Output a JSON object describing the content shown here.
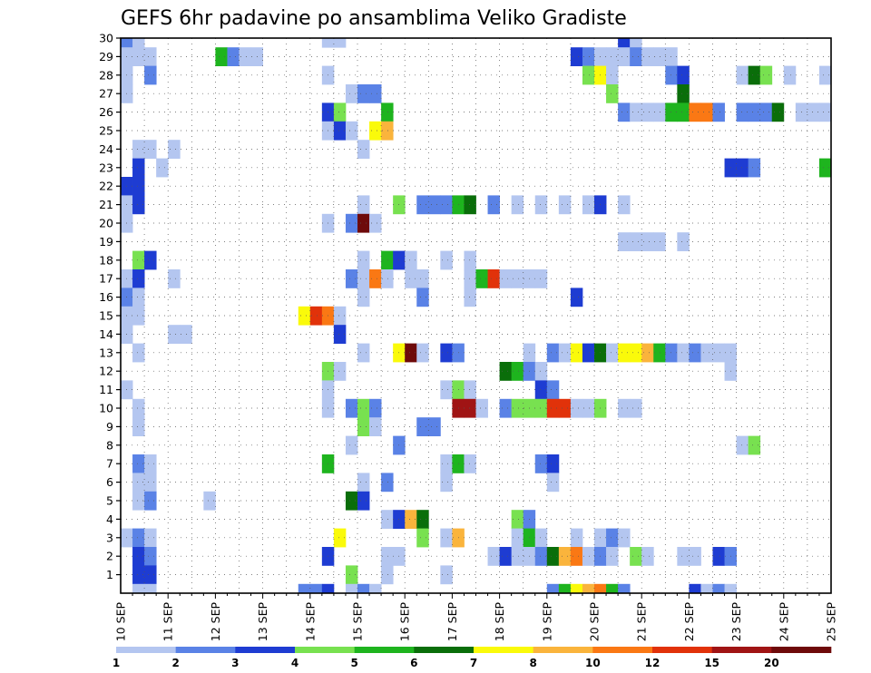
{
  "chart_data": {
    "type": "heatmap",
    "title": "GEFS 6hr padavine po ansamblima Veliko Gradiste",
    "xlabel": "",
    "ylabel": "",
    "x_tick_labels": [
      "10 SEP",
      "11 SEP",
      "12 SEP",
      "13 SEP",
      "14 SEP",
      "15 SEP",
      "16 SEP",
      "17 SEP",
      "18 SEP",
      "19 SEP",
      "20 SEP",
      "21 SEP",
      "22 SEP",
      "23 SEP",
      "24 SEP",
      "25 SEP"
    ],
    "y_tick_labels": [
      "1",
      "2",
      "3",
      "4",
      "5",
      "6",
      "7",
      "8",
      "9",
      "10",
      "11",
      "12",
      "13",
      "14",
      "15",
      "16",
      "17",
      "18",
      "19",
      "20",
      "21",
      "22",
      "23",
      "24",
      "25",
      "26",
      "27",
      "28",
      "29",
      "30"
    ],
    "x_unit": "6-hour step from 10 SEP 00z (4 steps per day)",
    "y_unit": "ensemble member (0 = control)",
    "xlim": [
      0,
      60
    ],
    "ylim": [
      0,
      30
    ],
    "grid": "dotted",
    "colorbar": {
      "placement": "bottom",
      "labels": [
        "1",
        "2",
        "3",
        "4",
        "5",
        "6",
        "7",
        "8",
        "10",
        "12",
        "15",
        "20"
      ],
      "bin_colors": [
        "#b4c6f0",
        "#5a82e6",
        "#1e3cd2",
        "#78e150",
        "#1eb41e",
        "#0a6e0a",
        "#fafa0a",
        "#fab43c",
        "#fa7814",
        "#e1320a",
        "#a01414",
        "#6e0a0a"
      ]
    },
    "cells_note": "each cell is [member, step, color_bin]; color_bin indexes colorbar.bin_colors",
    "cells": [
      [
        30,
        0,
        1
      ],
      [
        30,
        1,
        0
      ],
      [
        30,
        17,
        0
      ],
      [
        30,
        18,
        0
      ],
      [
        30,
        42,
        2
      ],
      [
        30,
        43,
        0
      ],
      [
        29,
        0,
        0
      ],
      [
        29,
        1,
        0
      ],
      [
        29,
        2,
        0
      ],
      [
        29,
        8,
        4
      ],
      [
        29,
        9,
        1
      ],
      [
        29,
        10,
        0
      ],
      [
        29,
        11,
        0
      ],
      [
        29,
        38,
        2
      ],
      [
        29,
        39,
        1
      ],
      [
        29,
        40,
        0
      ],
      [
        29,
        41,
        0
      ],
      [
        29,
        42,
        0
      ],
      [
        29,
        43,
        1
      ],
      [
        29,
        44,
        0
      ],
      [
        29,
        45,
        0
      ],
      [
        29,
        46,
        0
      ],
      [
        28,
        0,
        0
      ],
      [
        28,
        2,
        1
      ],
      [
        28,
        17,
        0
      ],
      [
        28,
        39,
        3
      ],
      [
        28,
        40,
        6
      ],
      [
        28,
        41,
        0
      ],
      [
        28,
        46,
        1
      ],
      [
        28,
        47,
        2
      ],
      [
        28,
        52,
        0
      ],
      [
        28,
        53,
        5
      ],
      [
        28,
        54,
        3
      ],
      [
        28,
        56,
        0
      ],
      [
        28,
        59,
        0
      ],
      [
        27,
        0,
        0
      ],
      [
        27,
        19,
        0
      ],
      [
        27,
        20,
        1
      ],
      [
        27,
        21,
        1
      ],
      [
        27,
        41,
        3
      ],
      [
        27,
        47,
        5
      ],
      [
        26,
        17,
        2
      ],
      [
        26,
        18,
        3
      ],
      [
        26,
        22,
        4
      ],
      [
        26,
        42,
        1
      ],
      [
        26,
        43,
        0
      ],
      [
        26,
        44,
        0
      ],
      [
        26,
        45,
        0
      ],
      [
        26,
        46,
        4
      ],
      [
        26,
        47,
        4
      ],
      [
        26,
        48,
        8
      ],
      [
        26,
        49,
        8
      ],
      [
        26,
        50,
        1
      ],
      [
        26,
        52,
        1
      ],
      [
        26,
        53,
        1
      ],
      [
        26,
        54,
        1
      ],
      [
        26,
        55,
        5
      ],
      [
        26,
        57,
        0
      ],
      [
        26,
        58,
        0
      ],
      [
        26,
        59,
        0
      ],
      [
        25,
        17,
        0
      ],
      [
        25,
        18,
        2
      ],
      [
        25,
        19,
        0
      ],
      [
        25,
        21,
        6
      ],
      [
        25,
        22,
        7
      ],
      [
        24,
        1,
        0
      ],
      [
        24,
        2,
        0
      ],
      [
        24,
        4,
        0
      ],
      [
        24,
        20,
        0
      ],
      [
        23,
        1,
        2
      ],
      [
        23,
        3,
        0
      ],
      [
        23,
        51,
        2
      ],
      [
        23,
        52,
        2
      ],
      [
        23,
        53,
        1
      ],
      [
        23,
        59,
        4
      ],
      [
        23,
        60,
        0
      ],
      [
        22,
        0,
        2
      ],
      [
        22,
        1,
        2
      ],
      [
        21,
        0,
        0
      ],
      [
        21,
        1,
        2
      ],
      [
        21,
        20,
        0
      ],
      [
        21,
        23,
        3
      ],
      [
        21,
        25,
        1
      ],
      [
        21,
        26,
        1
      ],
      [
        21,
        27,
        1
      ],
      [
        21,
        28,
        4
      ],
      [
        21,
        29,
        5
      ],
      [
        21,
        31,
        1
      ],
      [
        21,
        33,
        0
      ],
      [
        21,
        35,
        0
      ],
      [
        21,
        37,
        0
      ],
      [
        21,
        39,
        0
      ],
      [
        21,
        40,
        2
      ],
      [
        21,
        42,
        0
      ],
      [
        20,
        0,
        0
      ],
      [
        20,
        17,
        0
      ],
      [
        20,
        19,
        1
      ],
      [
        20,
        20,
        11
      ],
      [
        20,
        21,
        0
      ],
      [
        19,
        42,
        0
      ],
      [
        19,
        43,
        0
      ],
      [
        19,
        44,
        0
      ],
      [
        19,
        45,
        0
      ],
      [
        19,
        47,
        0
      ],
      [
        18,
        1,
        3
      ],
      [
        18,
        2,
        2
      ],
      [
        18,
        20,
        0
      ],
      [
        18,
        22,
        4
      ],
      [
        18,
        23,
        2
      ],
      [
        18,
        24,
        0
      ],
      [
        18,
        27,
        0
      ],
      [
        18,
        29,
        0
      ],
      [
        17,
        0,
        0
      ],
      [
        17,
        1,
        2
      ],
      [
        17,
        4,
        0
      ],
      [
        17,
        19,
        1
      ],
      [
        17,
        20,
        0
      ],
      [
        17,
        21,
        8
      ],
      [
        17,
        22,
        0
      ],
      [
        17,
        24,
        0
      ],
      [
        17,
        25,
        0
      ],
      [
        17,
        29,
        0
      ],
      [
        17,
        30,
        4
      ],
      [
        17,
        31,
        9
      ],
      [
        17,
        32,
        0
      ],
      [
        17,
        33,
        0
      ],
      [
        17,
        34,
        0
      ],
      [
        17,
        35,
        0
      ],
      [
        16,
        0,
        1
      ],
      [
        16,
        1,
        0
      ],
      [
        16,
        20,
        0
      ],
      [
        16,
        25,
        1
      ],
      [
        16,
        29,
        0
      ],
      [
        16,
        38,
        2
      ],
      [
        15,
        0,
        0
      ],
      [
        15,
        1,
        0
      ],
      [
        15,
        15,
        6
      ],
      [
        15,
        16,
        9
      ],
      [
        15,
        17,
        8
      ],
      [
        15,
        18,
        0
      ],
      [
        14,
        0,
        0
      ],
      [
        14,
        4,
        0
      ],
      [
        14,
        5,
        0
      ],
      [
        14,
        18,
        2
      ],
      [
        13,
        1,
        0
      ],
      [
        13,
        20,
        0
      ],
      [
        13,
        23,
        6
      ],
      [
        13,
        24,
        11
      ],
      [
        13,
        25,
        0
      ],
      [
        13,
        27,
        2
      ],
      [
        13,
        28,
        1
      ],
      [
        13,
        34,
        0
      ],
      [
        13,
        36,
        1
      ],
      [
        13,
        37,
        0
      ],
      [
        13,
        38,
        6
      ],
      [
        13,
        39,
        2
      ],
      [
        13,
        40,
        5
      ],
      [
        13,
        41,
        0
      ],
      [
        13,
        42,
        6
      ],
      [
        13,
        43,
        6
      ],
      [
        13,
        44,
        7
      ],
      [
        13,
        45,
        4
      ],
      [
        13,
        46,
        1
      ],
      [
        13,
        47,
        0
      ],
      [
        13,
        48,
        1
      ],
      [
        13,
        49,
        0
      ],
      [
        13,
        50,
        0
      ],
      [
        13,
        51,
        0
      ],
      [
        12,
        17,
        3
      ],
      [
        12,
        18,
        0
      ],
      [
        12,
        32,
        5
      ],
      [
        12,
        33,
        4
      ],
      [
        12,
        34,
        1
      ],
      [
        12,
        35,
        0
      ],
      [
        12,
        51,
        0
      ],
      [
        11,
        0,
        0
      ],
      [
        11,
        17,
        0
      ],
      [
        11,
        27,
        0
      ],
      [
        11,
        28,
        3
      ],
      [
        11,
        29,
        0
      ],
      [
        11,
        35,
        2
      ],
      [
        11,
        36,
        1
      ],
      [
        10,
        1,
        0
      ],
      [
        10,
        17,
        0
      ],
      [
        10,
        19,
        1
      ],
      [
        10,
        20,
        3
      ],
      [
        10,
        21,
        1
      ],
      [
        10,
        28,
        10
      ],
      [
        10,
        29,
        10
      ],
      [
        10,
        30,
        0
      ],
      [
        10,
        32,
        1
      ],
      [
        10,
        33,
        3
      ],
      [
        10,
        34,
        3
      ],
      [
        10,
        35,
        3
      ],
      [
        10,
        36,
        9
      ],
      [
        10,
        37,
        9
      ],
      [
        10,
        38,
        0
      ],
      [
        10,
        39,
        0
      ],
      [
        10,
        40,
        3
      ],
      [
        10,
        42,
        0
      ],
      [
        10,
        43,
        0
      ],
      [
        9,
        1,
        0
      ],
      [
        9,
        20,
        3
      ],
      [
        9,
        21,
        0
      ],
      [
        9,
        25,
        1
      ],
      [
        9,
        26,
        1
      ],
      [
        8,
        19,
        0
      ],
      [
        8,
        23,
        1
      ],
      [
        8,
        52,
        0
      ],
      [
        8,
        53,
        3
      ],
      [
        7,
        1,
        1
      ],
      [
        7,
        2,
        0
      ],
      [
        7,
        17,
        4
      ],
      [
        7,
        27,
        0
      ],
      [
        7,
        28,
        4
      ],
      [
        7,
        29,
        0
      ],
      [
        7,
        35,
        1
      ],
      [
        7,
        36,
        2
      ],
      [
        6,
        1,
        0
      ],
      [
        6,
        2,
        0
      ],
      [
        6,
        20,
        0
      ],
      [
        6,
        22,
        1
      ],
      [
        6,
        27,
        0
      ],
      [
        6,
        36,
        0
      ],
      [
        5,
        1,
        0
      ],
      [
        5,
        2,
        1
      ],
      [
        5,
        7,
        0
      ],
      [
        5,
        19,
        5
      ],
      [
        5,
        20,
        2
      ],
      [
        4,
        22,
        0
      ],
      [
        4,
        23,
        2
      ],
      [
        4,
        24,
        7
      ],
      [
        4,
        25,
        5
      ],
      [
        4,
        33,
        3
      ],
      [
        4,
        34,
        1
      ],
      [
        3,
        0,
        0
      ],
      [
        3,
        1,
        1
      ],
      [
        3,
        2,
        0
      ],
      [
        3,
        18,
        6
      ],
      [
        3,
        25,
        3
      ],
      [
        3,
        27,
        0
      ],
      [
        3,
        28,
        7
      ],
      [
        3,
        33,
        0
      ],
      [
        3,
        34,
        4
      ],
      [
        3,
        35,
        0
      ],
      [
        3,
        38,
        0
      ],
      [
        3,
        40,
        0
      ],
      [
        3,
        41,
        1
      ],
      [
        3,
        42,
        0
      ],
      [
        2,
        1,
        2
      ],
      [
        2,
        2,
        1
      ],
      [
        2,
        17,
        2
      ],
      [
        2,
        22,
        0
      ],
      [
        2,
        23,
        0
      ],
      [
        2,
        31,
        0
      ],
      [
        2,
        32,
        2
      ],
      [
        2,
        33,
        0
      ],
      [
        2,
        34,
        0
      ],
      [
        2,
        35,
        1
      ],
      [
        2,
        36,
        5
      ],
      [
        2,
        37,
        7
      ],
      [
        2,
        38,
        8
      ],
      [
        2,
        39,
        0
      ],
      [
        2,
        40,
        1
      ],
      [
        2,
        41,
        0
      ],
      [
        2,
        43,
        3
      ],
      [
        2,
        44,
        0
      ],
      [
        2,
        47,
        0
      ],
      [
        2,
        48,
        0
      ],
      [
        2,
        50,
        2
      ],
      [
        2,
        51,
        1
      ],
      [
        1,
        1,
        2
      ],
      [
        1,
        2,
        2
      ],
      [
        1,
        19,
        3
      ],
      [
        1,
        22,
        0
      ],
      [
        1,
        27,
        0
      ],
      [
        0,
        1,
        0
      ],
      [
        0,
        2,
        0
      ],
      [
        0,
        15,
        1
      ],
      [
        0,
        16,
        1
      ],
      [
        0,
        17,
        2
      ],
      [
        0,
        19,
        0
      ],
      [
        0,
        20,
        1
      ],
      [
        0,
        21,
        0
      ],
      [
        0,
        36,
        1
      ],
      [
        0,
        37,
        4
      ],
      [
        0,
        38,
        6
      ],
      [
        0,
        39,
        7
      ],
      [
        0,
        40,
        8
      ],
      [
        0,
        41,
        4
      ],
      [
        0,
        42,
        1
      ],
      [
        0,
        48,
        2
      ],
      [
        0,
        49,
        0
      ],
      [
        0,
        50,
        1
      ],
      [
        0,
        51,
        0
      ]
    ]
  }
}
